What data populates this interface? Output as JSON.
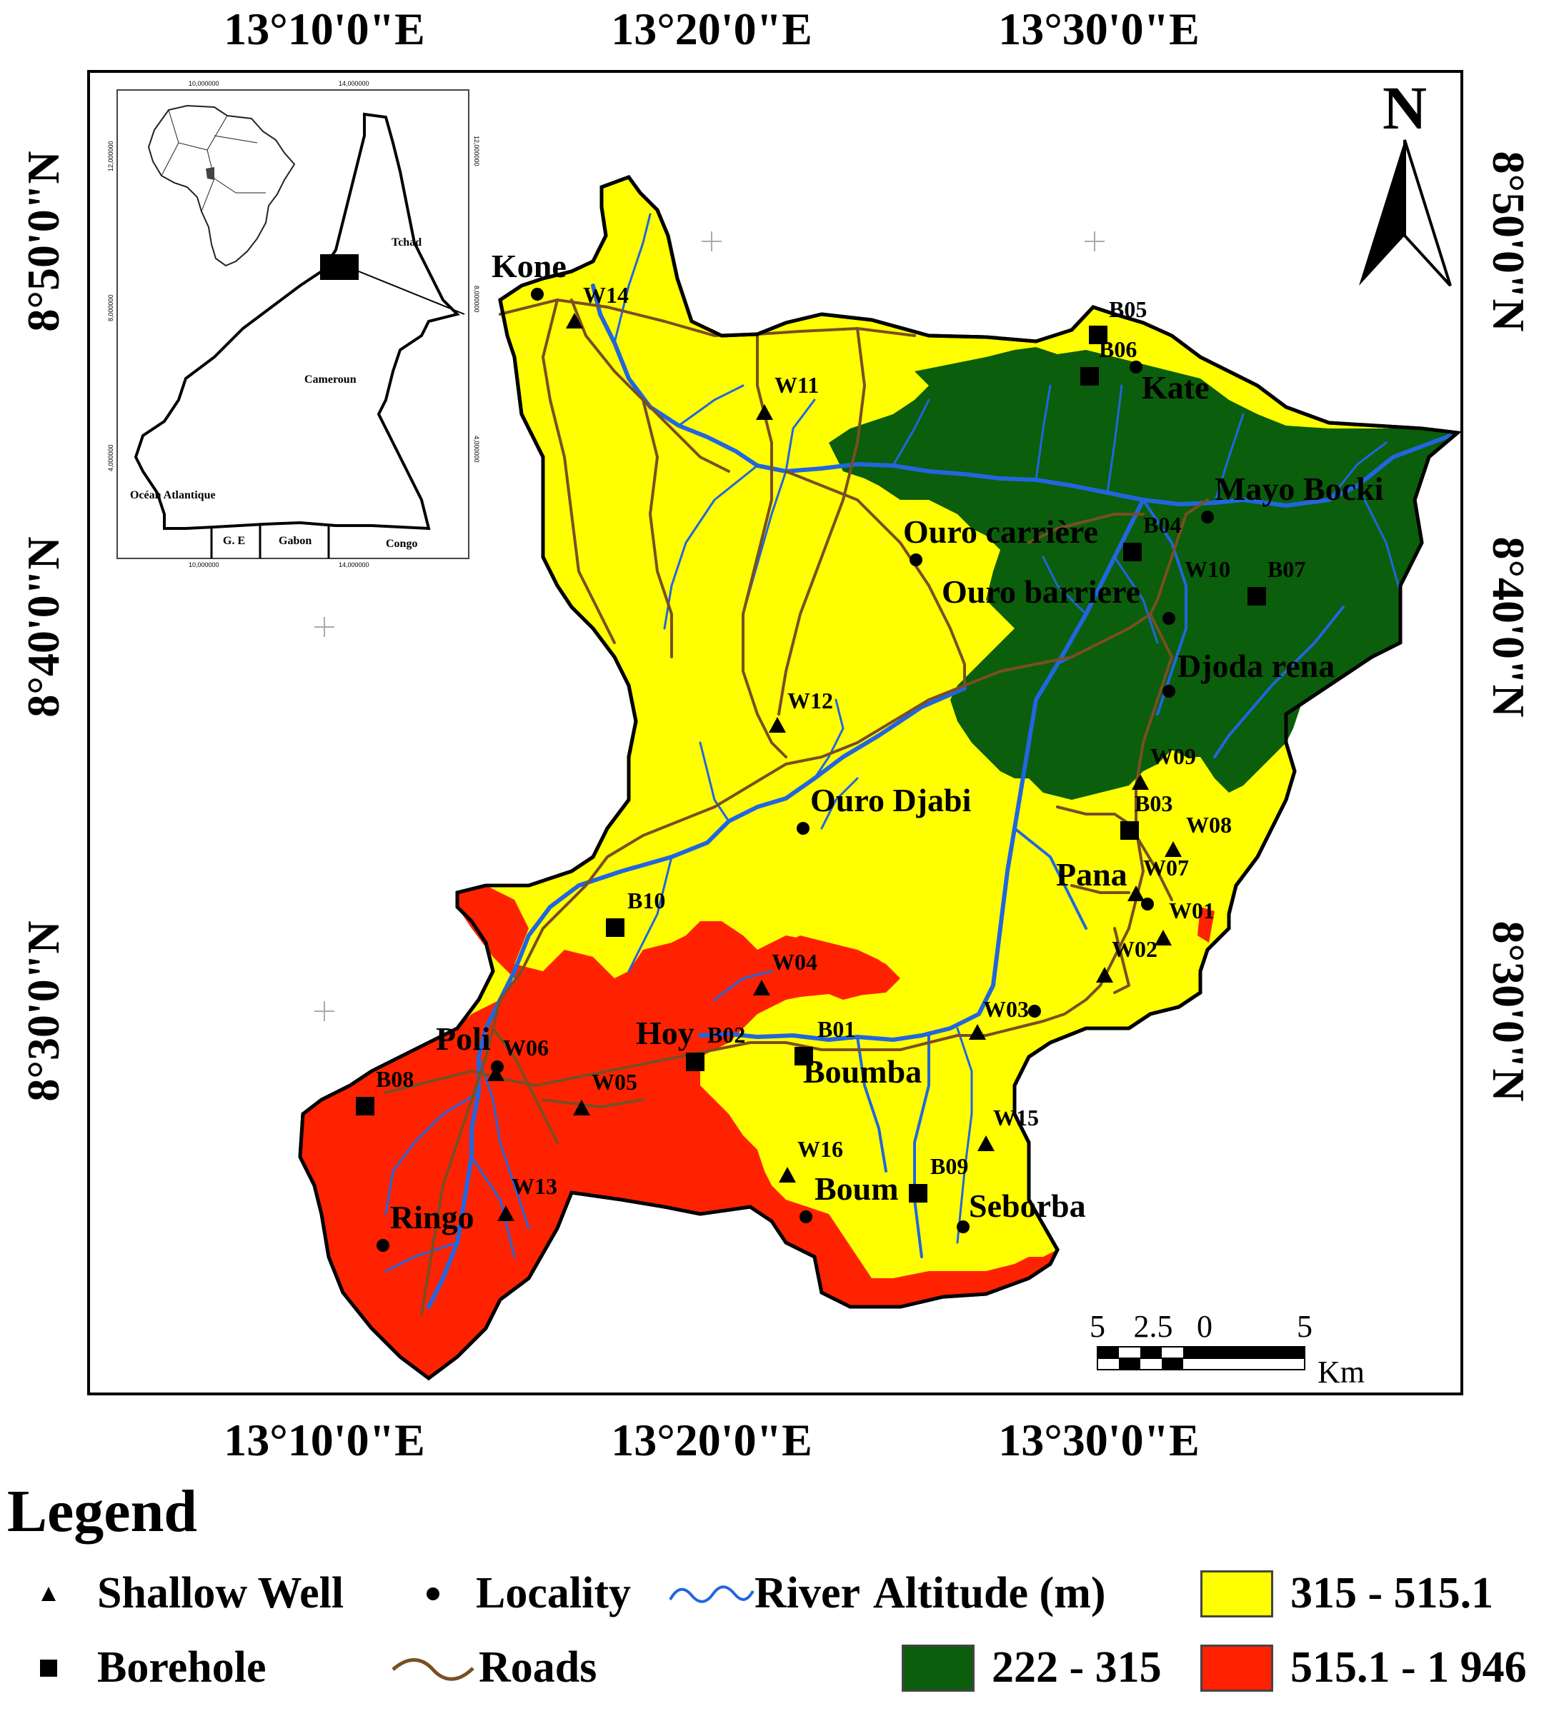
{
  "coords": {
    "lon_top": [
      "13°10'0\"E",
      "13°20'0\"E",
      "13°30'0\"E"
    ],
    "lon_bottom": [
      "13°10'0\"E",
      "13°20'0\"E",
      "13°30'0\"E"
    ],
    "lat_left": [
      "8°50'0\"N",
      "8°40'0\"N",
      "8°30'0\"N"
    ],
    "lat_right": [
      "8°50'0\"N",
      "8°40'0\"N",
      "8°30'0\"N"
    ]
  },
  "north_arrow": {
    "label": "N"
  },
  "inset": {
    "labels": [
      "Tchad",
      "Cameroun",
      "Océan Atlantique",
      "G. E",
      "Gabon",
      "Congo"
    ],
    "ticks_top": [
      "10,000000",
      "14,000000"
    ],
    "ticks_bottom": [
      "10,000000",
      "14,000000"
    ],
    "ticks_left": [
      "12,000000",
      "8,000000",
      "4,000000"
    ],
    "ticks_right": [
      "12,000000",
      "8,000000",
      "4,000000"
    ]
  },
  "scale_bar": {
    "ticks": [
      "5",
      "2.5",
      "0",
      "5"
    ],
    "unit": "Km"
  },
  "localities": [
    "Kone",
    "Kate",
    "Mayo Bocki",
    "Ouro carrière",
    "Ouro barriere",
    "Djoda rena",
    "Ouro Djabi",
    "Pana",
    "Poli",
    "Hoy",
    "Boumba",
    "Boum",
    "Seborba",
    "Ringo"
  ],
  "wells": [
    "W14",
    "W11",
    "W12",
    "W10",
    "W09",
    "W08",
    "W07",
    "W01",
    "W02",
    "W03",
    "W04",
    "W06",
    "W05",
    "W15",
    "W16",
    "W13"
  ],
  "boreholes": [
    "B05",
    "B06",
    "B04",
    "B07",
    "B03",
    "B10",
    "B02",
    "B01",
    "B08",
    "B09"
  ],
  "legend": {
    "title": "Legend",
    "shallow_well": "Shallow Well",
    "locality": "Locality",
    "river": "River",
    "altitude_title": "Altitude (m)",
    "borehole": "Borehole",
    "roads": "Roads",
    "classes": [
      {
        "label": "315 - 515.1",
        "color": "#ffff00"
      },
      {
        "label": "222 - 315",
        "color": "#0b5e0b"
      },
      {
        "label": "515.1 - 1 946",
        "color": "#ff2200"
      }
    ]
  },
  "colors": {
    "river": "#2266dd",
    "road": "#7a4e24",
    "yellow": "#ffff00",
    "green": "#0b5e0b",
    "red": "#ff2200"
  }
}
